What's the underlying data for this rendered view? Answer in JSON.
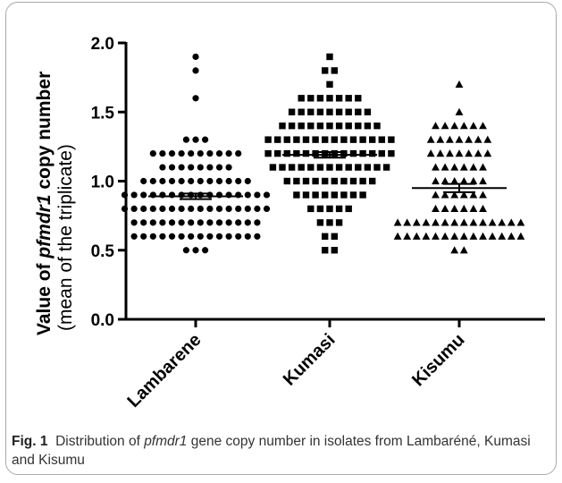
{
  "caption": {
    "fig_label": "Fig. 1",
    "text_before": "Distribution of ",
    "text_italic": "pfmdr1",
    "text_after": " gene copy number in isolates from Lambaréné, Kumasi and Kisumu"
  },
  "chart_data": {
    "type": "scatter",
    "title": "",
    "ylabel_prefix": "Value of ",
    "ylabel_italic": "pfmdr1",
    "ylabel_suffix": " copy number",
    "ylabel_line2": "(mean of the triplicate)",
    "ylim": [
      0,
      2.0
    ],
    "yticks": [
      "0.0",
      "0.5",
      "1.0",
      "1.5",
      "2.0"
    ],
    "categories": [
      "Lambarene",
      "Kumasi",
      "Kisumu"
    ],
    "series": [
      {
        "category": "Lambarene",
        "marker": "circle",
        "mean": 0.89,
        "sem": 0.02,
        "values": [
          1.9,
          1.8,
          1.6,
          1.3,
          1.3,
          1.3,
          1.2,
          1.2,
          1.2,
          1.2,
          1.2,
          1.2,
          1.2,
          1.2,
          1.2,
          1.2,
          1.1,
          1.1,
          1.1,
          1.1,
          1.1,
          1.1,
          1.1,
          1.1,
          1.0,
          1.0,
          1.0,
          1.0,
          1.0,
          1.0,
          1.0,
          1.0,
          1.0,
          1.0,
          1.0,
          1.0,
          0.9,
          0.9,
          0.9,
          0.9,
          0.9,
          0.9,
          0.9,
          0.9,
          0.9,
          0.9,
          0.9,
          0.9,
          0.9,
          0.9,
          0.9,
          0.9,
          0.8,
          0.8,
          0.8,
          0.8,
          0.8,
          0.8,
          0.8,
          0.8,
          0.8,
          0.8,
          0.8,
          0.8,
          0.8,
          0.8,
          0.8,
          0.8,
          0.7,
          0.7,
          0.7,
          0.7,
          0.7,
          0.7,
          0.7,
          0.7,
          0.7,
          0.7,
          0.7,
          0.7,
          0.7,
          0.7,
          0.6,
          0.6,
          0.6,
          0.6,
          0.6,
          0.6,
          0.6,
          0.6,
          0.6,
          0.6,
          0.6,
          0.6,
          0.6,
          0.6,
          0.5,
          0.5,
          0.5
        ]
      },
      {
        "category": "Kumasi",
        "marker": "square",
        "mean": 1.19,
        "sem": 0.02,
        "values": [
          1.9,
          1.8,
          1.8,
          1.7,
          1.6,
          1.6,
          1.6,
          1.6,
          1.6,
          1.6,
          1.6,
          1.5,
          1.5,
          1.5,
          1.5,
          1.5,
          1.5,
          1.5,
          1.5,
          1.5,
          1.4,
          1.4,
          1.4,
          1.4,
          1.4,
          1.4,
          1.4,
          1.4,
          1.4,
          1.4,
          1.4,
          1.3,
          1.3,
          1.3,
          1.3,
          1.3,
          1.3,
          1.3,
          1.3,
          1.3,
          1.3,
          1.3,
          1.3,
          1.3,
          1.3,
          1.2,
          1.2,
          1.2,
          1.2,
          1.2,
          1.2,
          1.2,
          1.2,
          1.2,
          1.2,
          1.2,
          1.2,
          1.2,
          1.2,
          1.1,
          1.1,
          1.1,
          1.1,
          1.1,
          1.1,
          1.1,
          1.1,
          1.1,
          1.1,
          1.1,
          1.1,
          1.1,
          1.0,
          1.0,
          1.0,
          1.0,
          1.0,
          1.0,
          1.0,
          1.0,
          1.0,
          1.0,
          0.9,
          0.9,
          0.9,
          0.9,
          0.9,
          0.9,
          0.9,
          0.9,
          0.8,
          0.8,
          0.8,
          0.8,
          0.8,
          0.7,
          0.7,
          0.7,
          0.6,
          0.6,
          0.5,
          0.5
        ]
      },
      {
        "category": "Kisumu",
        "marker": "triangle",
        "mean": 0.95,
        "sem": 0.03,
        "values": [
          1.7,
          1.5,
          1.4,
          1.4,
          1.4,
          1.4,
          1.4,
          1.4,
          1.3,
          1.3,
          1.3,
          1.3,
          1.3,
          1.3,
          1.3,
          1.2,
          1.2,
          1.2,
          1.2,
          1.2,
          1.2,
          1.2,
          1.1,
          1.1,
          1.1,
          1.1,
          1.1,
          1.1,
          1.0,
          1.0,
          1.0,
          1.0,
          1.0,
          1.0,
          0.9,
          0.9,
          0.9,
          0.9,
          0.9,
          0.9,
          0.8,
          0.8,
          0.8,
          0.8,
          0.8,
          0.8,
          0.7,
          0.7,
          0.7,
          0.7,
          0.7,
          0.7,
          0.7,
          0.7,
          0.7,
          0.7,
          0.7,
          0.7,
          0.7,
          0.7,
          0.6,
          0.6,
          0.6,
          0.6,
          0.6,
          0.6,
          0.6,
          0.6,
          0.6,
          0.6,
          0.6,
          0.6,
          0.6,
          0.6,
          0.5,
          0.5
        ]
      }
    ]
  }
}
